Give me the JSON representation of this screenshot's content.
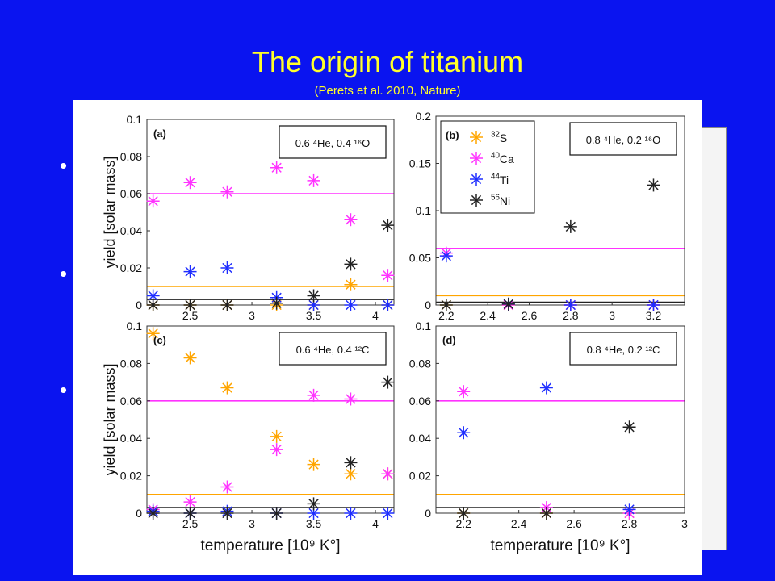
{
  "slide": {
    "title": "The origin of titanium",
    "subtitle": "(Perets et al. 2010, Nature)",
    "bullets": [
      "•",
      "•",
      "•"
    ]
  },
  "colors": {
    "background": "#0a14f0",
    "title": "#ffff2a",
    "S32": "#ffa500",
    "Ca40": "#ff33ff",
    "Ti44": "#1f2eff",
    "Ni56": "#222222"
  },
  "chart_data": [
    {
      "type": "scatter",
      "panel_label": "(a)",
      "composition": "0.6 ⁴He, 0.4 ¹⁶O",
      "ylabel": "yield [solar mass]",
      "xlabel": "",
      "xlim": [
        2.15,
        4.15
      ],
      "ylim": [
        0,
        0.1
      ],
      "xticks": [
        "2.5",
        "3",
        "3.5",
        "4"
      ],
      "yticks": [
        "0",
        "0.02",
        "0.04",
        "0.06",
        "0.08",
        "0.1"
      ],
      "hlines": [
        {
          "y": 0.06,
          "series": "Ca40"
        },
        {
          "y": 0.01,
          "series": "S32"
        },
        {
          "y": 0.003,
          "series": "Ni56"
        }
      ],
      "series": [
        {
          "key": "S32",
          "x": [
            2.2,
            2.5,
            2.8,
            3.2,
            3.5,
            3.8,
            4.1
          ],
          "y": [
            0.0,
            0.0,
            0.0,
            0.0,
            0.0,
            0.011,
            0.0
          ]
        },
        {
          "key": "Ca40",
          "x": [
            2.2,
            2.5,
            2.8,
            3.2,
            3.5,
            3.8,
            4.1
          ],
          "y": [
            0.056,
            0.066,
            0.061,
            0.074,
            0.067,
            0.046,
            0.016
          ]
        },
        {
          "key": "Ti44",
          "x": [
            2.2,
            2.5,
            2.8,
            3.2,
            3.5,
            3.8,
            4.1
          ],
          "y": [
            0.005,
            0.018,
            0.02,
            0.004,
            0.0,
            0.0,
            0.0
          ]
        },
        {
          "key": "Ni56",
          "x": [
            2.2,
            2.5,
            2.8,
            3.2,
            3.5,
            3.8,
            4.1
          ],
          "y": [
            0.0,
            0.0,
            0.0,
            0.001,
            0.005,
            0.022,
            0.043
          ]
        }
      ]
    },
    {
      "type": "scatter",
      "panel_label": "(b)",
      "composition": "0.8 ⁴He, 0.2 ¹⁶O",
      "ylabel": "",
      "xlabel": "",
      "xlim": [
        2.15,
        3.35
      ],
      "ylim": [
        0,
        0.2
      ],
      "xticks": [
        "2.2",
        "2.4",
        "2.6",
        "2.8",
        "3",
        "3.2"
      ],
      "yticks": [
        "0",
        "0.05",
        "0.1",
        "0.15",
        "0.2"
      ],
      "hlines": [
        {
          "y": 0.06,
          "series": "Ca40"
        },
        {
          "y": 0.01,
          "series": "S32"
        },
        {
          "y": 0.003,
          "series": "Ni56"
        }
      ],
      "legend": [
        {
          "key": "S32",
          "iso": "32",
          "el": "S"
        },
        {
          "key": "Ca40",
          "iso": "40",
          "el": "Ca"
        },
        {
          "key": "Ti44",
          "iso": "44",
          "el": "Ti"
        },
        {
          "key": "Ni56",
          "iso": "56",
          "el": "Ni"
        }
      ],
      "series": [
        {
          "key": "S32",
          "x": [
            2.2,
            2.5,
            2.8,
            3.2
          ],
          "y": [
            0.0,
            0.0,
            0.0,
            0.0
          ]
        },
        {
          "key": "Ca40",
          "x": [
            2.2,
            2.5,
            2.8,
            3.2
          ],
          "y": [
            0.055,
            0.0,
            0.0,
            0.0
          ]
        },
        {
          "key": "Ti44",
          "x": [
            2.2,
            2.5,
            2.8,
            3.2
          ],
          "y": [
            0.052,
            0.001,
            0.0,
            0.0
          ]
        },
        {
          "key": "Ni56",
          "x": [
            2.2,
            2.5,
            2.8,
            3.2
          ],
          "y": [
            0.0,
            0.001,
            0.083,
            0.127
          ]
        }
      ]
    },
    {
      "type": "scatter",
      "panel_label": "(c)",
      "composition": "0.6 ⁴He, 0.4 ¹²C",
      "ylabel": "yield [solar mass]",
      "xlabel": "temperature [10⁹ K°]",
      "xlim": [
        2.15,
        4.15
      ],
      "ylim": [
        0,
        0.1
      ],
      "xticks": [
        "2.5",
        "3",
        "3.5",
        "4"
      ],
      "yticks": [
        "0",
        "0.02",
        "0.04",
        "0.06",
        "0.08",
        "0.1"
      ],
      "hlines": [
        {
          "y": 0.06,
          "series": "Ca40"
        },
        {
          "y": 0.01,
          "series": "S32"
        },
        {
          "y": 0.003,
          "series": "Ni56"
        }
      ],
      "series": [
        {
          "key": "S32",
          "x": [
            2.2,
            2.5,
            2.8,
            3.2,
            3.5,
            3.8,
            4.1
          ],
          "y": [
            0.096,
            0.083,
            0.067,
            0.041,
            0.026,
            0.021,
            0.021
          ]
        },
        {
          "key": "Ca40",
          "x": [
            2.2,
            2.5,
            2.8,
            3.2,
            3.5,
            3.8,
            4.1
          ],
          "y": [
            0.002,
            0.006,
            0.014,
            0.034,
            0.063,
            0.061,
            0.021
          ]
        },
        {
          "key": "Ti44",
          "x": [
            2.2,
            2.5,
            2.8,
            3.2,
            3.5,
            3.8,
            4.1
          ],
          "y": [
            0.001,
            0.0,
            0.001,
            0.0,
            0.0,
            0.0,
            0.0
          ]
        },
        {
          "key": "Ni56",
          "x": [
            2.2,
            2.5,
            2.8,
            3.2,
            3.5,
            3.8,
            4.1
          ],
          "y": [
            0.0,
            0.0,
            0.0,
            0.0,
            0.005,
            0.027,
            0.07
          ]
        }
      ]
    },
    {
      "type": "scatter",
      "panel_label": "(d)",
      "composition": "0.8 ⁴He, 0.2 ¹²C",
      "ylabel": "",
      "xlabel": "temperature [10⁹ K°]",
      "xlim": [
        2.1,
        3.0
      ],
      "ylim": [
        0,
        0.1
      ],
      "xticks": [
        "2.2",
        "2.4",
        "2.6",
        "2.8",
        "3"
      ],
      "yticks": [
        "0",
        "0.02",
        "0.04",
        "0.06",
        "0.08",
        "0.1"
      ],
      "hlines": [
        {
          "y": 0.06,
          "series": "Ca40"
        },
        {
          "y": 0.01,
          "series": "S32"
        },
        {
          "y": 0.003,
          "series": "Ni56"
        }
      ],
      "series": [
        {
          "key": "S32",
          "x": [
            2.2,
            2.5,
            2.8
          ],
          "y": [
            0.0,
            0.0,
            0.0
          ]
        },
        {
          "key": "Ca40",
          "x": [
            2.2,
            2.5,
            2.8
          ],
          "y": [
            0.065,
            0.003,
            0.0
          ]
        },
        {
          "key": "Ti44",
          "x": [
            2.2,
            2.5,
            2.8
          ],
          "y": [
            0.043,
            0.067,
            0.002
          ]
        },
        {
          "key": "Ni56",
          "x": [
            2.2,
            2.5,
            2.8
          ],
          "y": [
            0.0,
            0.0,
            0.046
          ]
        }
      ]
    }
  ]
}
